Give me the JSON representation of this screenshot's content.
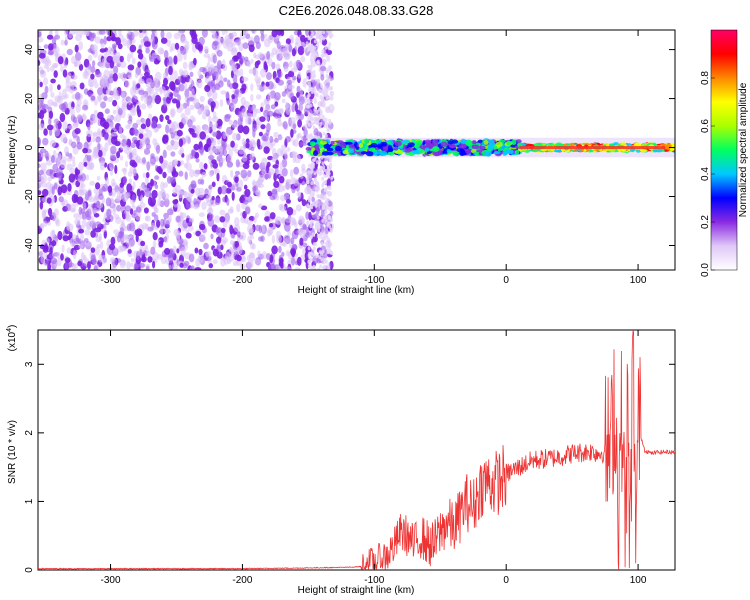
{
  "title": "C2E6.2026.048.08.33.G28",
  "chart_data": [
    {
      "type": "heatmap",
      "title": "C2E6.2026.048.08.33.G28",
      "xlabel": "Height of straight line (km)",
      "ylabel": "Frequency (Hz)",
      "xlim": [
        -355,
        128
      ],
      "ylim": [
        -50,
        48
      ],
      "xticks": [
        -300,
        -200,
        -100,
        0,
        100
      ],
      "yticks": [
        -40,
        -20,
        0,
        20,
        40
      ],
      "noise_region_km": [
        -355,
        -132
      ],
      "signal_start_km": -150,
      "signal_band_hz": [
        -8,
        5
      ],
      "strong_signal_km": [
        10,
        120
      ],
      "colorbar": {
        "label": "Normalized spectral amplitude",
        "range": [
          0.0,
          1.0
        ],
        "ticks": [
          0.0,
          0.2,
          0.4,
          0.6,
          0.8
        ],
        "tick_labels": [
          "0.0",
          "0.2",
          "0.4",
          "0.6",
          "0.8"
        ],
        "colormap": [
          "#ffffff",
          "#e0c8f8",
          "#8a2be2",
          "#0000ff",
          "#00c8ff",
          "#00ff60",
          "#aaff00",
          "#ffff00",
          "#ff8800",
          "#ff0000",
          "#ff0066"
        ]
      }
    },
    {
      "type": "line",
      "xlabel": "Height of straight line (km)",
      "ylabel": "SNR (10 * v/v)",
      "scale_label": "(x10",
      "scale_exp": "4",
      "scale_suffix": ")",
      "xlim": [
        -355,
        128
      ],
      "ylim": [
        0,
        3.5
      ],
      "xticks": [
        -300,
        -200,
        -100,
        0,
        100
      ],
      "yticks": [
        0,
        1,
        2,
        3
      ],
      "color": "#ee3333",
      "series": [
        {
          "name": "SNR",
          "x": [
            -355,
            -300,
            -250,
            -200,
            -150,
            -120,
            -110,
            -100,
            -95,
            -90,
            -85,
            -80,
            -75,
            -70,
            -65,
            -60,
            -55,
            -50,
            -45,
            -40,
            -35,
            -30,
            -25,
            -20,
            -15,
            -10,
            -5,
            0,
            5,
            10,
            15,
            20,
            30,
            40,
            50,
            60,
            65,
            70,
            75,
            80,
            82,
            85,
            88,
            90,
            92,
            94,
            96,
            98,
            100,
            105,
            110,
            115,
            120,
            128
          ],
          "y": [
            0.02,
            0.02,
            0.02,
            0.02,
            0.03,
            0.04,
            0.05,
            0.12,
            0.15,
            0.22,
            0.35,
            0.55,
            0.5,
            0.35,
            0.5,
            0.4,
            0.35,
            0.55,
            0.7,
            0.6,
            0.8,
            1.0,
            0.9,
            1.2,
            1.3,
            1.25,
            1.3,
            1.4,
            1.45,
            1.5,
            1.55,
            1.6,
            1.62,
            1.65,
            1.7,
            1.72,
            1.73,
            1.7,
            1.72,
            1.75,
            2.6,
            1.0,
            2.4,
            0.5,
            2.2,
            0.1,
            3.5,
            0.4,
            2.1,
            1.75,
            1.7,
            1.72,
            1.72,
            1.72
          ]
        }
      ]
    }
  ]
}
